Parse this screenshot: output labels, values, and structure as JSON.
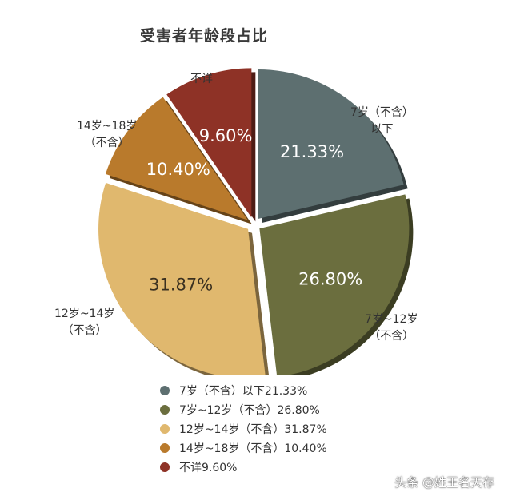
{
  "chart_data": {
    "type": "pie",
    "title": "受害者年龄段占比",
    "slices": [
      {
        "label_line1": "7岁（不含）",
        "label_line2": "以下",
        "value": 21.33,
        "value_label": "21.33%",
        "color": "#5d6f70",
        "legend": "7岁（不含）以下21.33%"
      },
      {
        "label_line1": "7岁~12岁",
        "label_line2": "（不含）",
        "value": 26.8,
        "value_label": "26.80%",
        "color": "#6b6e3e",
        "legend": "7岁~12岁（不含）26.80%"
      },
      {
        "label_line1": "12岁~14岁",
        "label_line2": "（不含）",
        "value": 31.87,
        "value_label": "31.87%",
        "color": "#e0b86e",
        "legend": "12岁~14岁（不含）31.87%"
      },
      {
        "label_line1": "14岁~18岁",
        "label_line2": "（不含）",
        "value": 10.4,
        "value_label": "10.40%",
        "color": "#b97a2c",
        "legend": "14岁~18岁（不含）10.40%"
      },
      {
        "label_line1": "不详",
        "label_line2": "",
        "value": 9.6,
        "value_label": "9.60%",
        "color": "#8e3226",
        "legend": "不详9.60%"
      }
    ]
  },
  "watermark": "头条 @姓王名天存"
}
